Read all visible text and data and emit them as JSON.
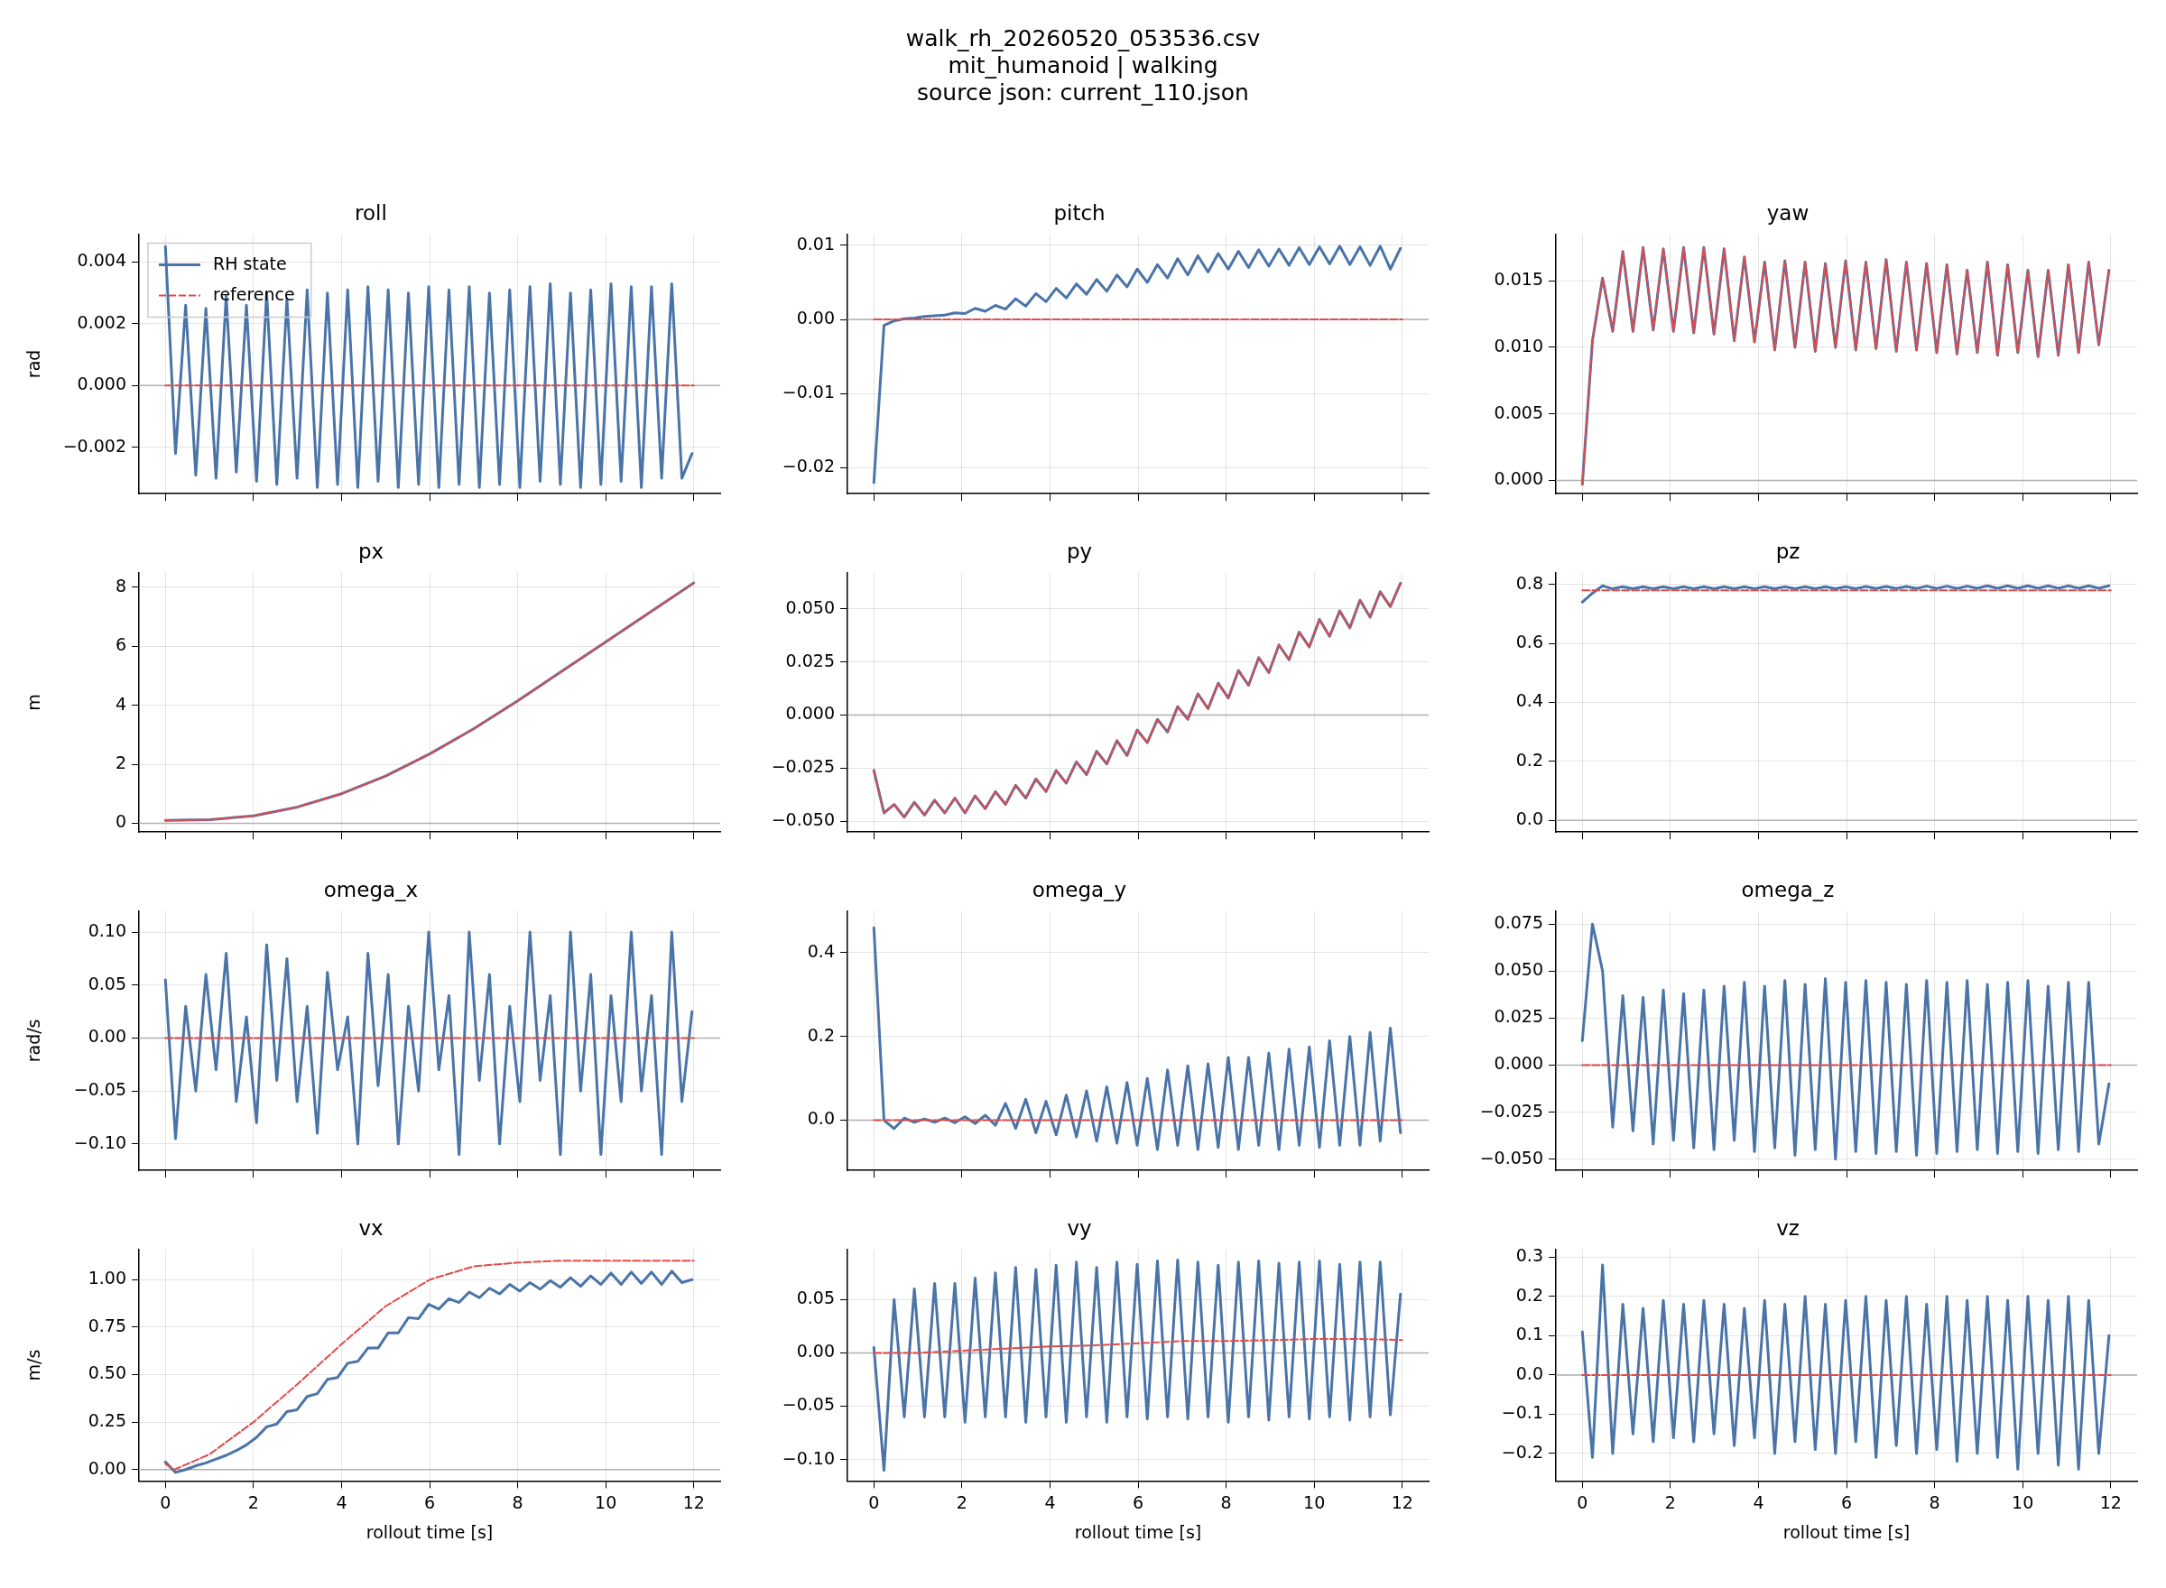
{
  "chart_data": [
    {
      "type": "line",
      "title": "roll",
      "ylabel": "rad",
      "annotations": [
        "walk_rh_20260520_053536.csv",
        "mit_humanoid | walking",
        "source json: current_110.json"
      ],
      "legend": "top left",
      "tick_labels": "y",
      "grid": true,
      "marker": "none",
      "x": [
        0,
        0.23,
        0.46,
        0.69,
        0.92,
        1.15,
        1.38,
        1.61,
        1.84,
        2.07,
        2.3,
        2.53,
        2.76,
        2.99,
        3.22,
        3.45,
        3.68,
        3.91,
        4.14,
        4.37,
        4.6,
        4.83,
        5.06,
        5.29,
        5.52,
        5.75,
        5.98,
        6.21,
        6.44,
        6.67,
        6.9,
        7.13,
        7.36,
        7.59,
        7.82,
        8.05,
        8.28,
        8.51,
        8.74,
        8.97,
        9.2,
        9.43,
        9.66,
        9.89,
        10.12,
        10.35,
        10.58,
        10.81,
        11.04,
        11.27,
        11.5,
        11.73,
        11.96
      ],
      "xlim": [
        -0.6,
        12.6
      ],
      "xticks": [
        0,
        2,
        4,
        6,
        8,
        10,
        12
      ],
      "ylim": [
        -0.0035,
        0.0049
      ],
      "yticks": [
        {
          "value": -0.002,
          "label": "−0.002"
        },
        {
          "value": 0,
          "label": "0.000"
        },
        {
          "value": 0.002,
          "label": "0.002"
        },
        {
          "value": 0.004,
          "label": "0.004"
        }
      ],
      "ref_lines": [
        {
          "axis": "y",
          "value": 0,
          "color": "#b0b0b0"
        }
      ],
      "series": [
        {
          "name": "RH state",
          "color": "#4a74a8",
          "line_style": "solid",
          "values": [
            0.0045,
            -0.0022,
            0.0026,
            -0.0029,
            0.0025,
            -0.003,
            0.0029,
            -0.0028,
            0.0026,
            -0.0031,
            0.003,
            -0.0032,
            0.0028,
            -0.003,
            0.0031,
            -0.0033,
            0.003,
            -0.0032,
            0.0031,
            -0.0033,
            0.0032,
            -0.0031,
            0.0031,
            -0.0033,
            0.003,
            -0.0032,
            0.0032,
            -0.0033,
            0.0031,
            -0.0032,
            0.0032,
            -0.0033,
            0.003,
            -0.0032,
            0.0031,
            -0.0033,
            0.0032,
            -0.0031,
            0.0033,
            -0.0032,
            0.003,
            -0.0033,
            0.0031,
            -0.0032,
            0.0033,
            -0.0031,
            0.0032,
            -0.0033,
            0.0032,
            -0.003,
            0.0033,
            -0.003,
            -0.0022
          ]
        },
        {
          "name": "reference",
          "color": "#e34a4a",
          "line_style": "dashed",
          "x": [
            0,
            12
          ],
          "values": [
            0,
            0
          ]
        }
      ]
    },
    {
      "type": "line",
      "title": "pitch",
      "tick_labels": "y",
      "grid": true,
      "marker": "none",
      "x": [
        0,
        0.23,
        0.46,
        0.69,
        0.92,
        1.15,
        1.38,
        1.61,
        1.84,
        2.07,
        2.3,
        2.53,
        2.76,
        2.99,
        3.22,
        3.45,
        3.68,
        3.91,
        4.14,
        4.37,
        4.6,
        4.83,
        5.06,
        5.29,
        5.52,
        5.75,
        5.98,
        6.21,
        6.44,
        6.67,
        6.9,
        7.13,
        7.36,
        7.59,
        7.82,
        8.05,
        8.28,
        8.51,
        8.74,
        8.97,
        9.2,
        9.43,
        9.66,
        9.89,
        10.12,
        10.35,
        10.58,
        10.81,
        11.04,
        11.27,
        11.5,
        11.73,
        11.96
      ],
      "xlim": [
        -0.6,
        12.6
      ],
      "xticks": [
        0,
        2,
        4,
        6,
        8,
        10,
        12
      ],
      "ylim": [
        -0.0235,
        0.0115
      ],
      "yticks": [
        {
          "value": -0.02,
          "label": "−0.02"
        },
        {
          "value": -0.01,
          "label": "−0.01"
        },
        {
          "value": 0,
          "label": "0.00"
        },
        {
          "value": 0.01,
          "label": "0.01"
        }
      ],
      "ref_lines": [
        {
          "axis": "y",
          "value": 0,
          "color": "#b0b0b0"
        }
      ],
      "series": [
        {
          "color": "#4a74a8",
          "line_style": "solid",
          "values": [
            -0.022,
            -0.0008,
            -0.0002,
            0.0001,
            0.0002,
            0.0004,
            0.0005,
            0.0006,
            0.0009,
            0.0008,
            0.0015,
            0.0011,
            0.0019,
            0.0014,
            0.0028,
            0.0018,
            0.0035,
            0.0024,
            0.0042,
            0.0029,
            0.0048,
            0.0034,
            0.0054,
            0.0038,
            0.006,
            0.0044,
            0.0068,
            0.005,
            0.0074,
            0.0056,
            0.0082,
            0.006,
            0.0086,
            0.0064,
            0.0089,
            0.0068,
            0.0092,
            0.007,
            0.0094,
            0.0072,
            0.0095,
            0.0073,
            0.0097,
            0.0074,
            0.0098,
            0.0075,
            0.0099,
            0.0074,
            0.0098,
            0.0073,
            0.0099,
            0.0068,
            0.0096
          ]
        },
        {
          "color": "#e34a4a",
          "line_style": "dashed",
          "x": [
            0,
            12
          ],
          "values": [
            0,
            0
          ]
        }
      ]
    },
    {
      "type": "line",
      "title": "yaw",
      "tick_labels": "y",
      "grid": true,
      "marker": "none",
      "x": [
        0,
        0.23,
        0.46,
        0.69,
        0.92,
        1.15,
        1.38,
        1.61,
        1.84,
        2.07,
        2.3,
        2.53,
        2.76,
        2.99,
        3.22,
        3.45,
        3.68,
        3.91,
        4.14,
        4.37,
        4.6,
        4.83,
        5.06,
        5.29,
        5.52,
        5.75,
        5.98,
        6.21,
        6.44,
        6.67,
        6.9,
        7.13,
        7.36,
        7.59,
        7.82,
        8.05,
        8.28,
        8.51,
        8.74,
        8.97,
        9.2,
        9.43,
        9.66,
        9.89,
        10.12,
        10.35,
        10.58,
        10.81,
        11.04,
        11.27,
        11.5,
        11.73,
        11.96
      ],
      "xlim": [
        -0.6,
        12.6
      ],
      "xticks": [
        0,
        2,
        4,
        6,
        8,
        10,
        12
      ],
      "ylim": [
        -0.001,
        0.0185
      ],
      "yticks": [
        {
          "value": 0,
          "label": "0.000"
        },
        {
          "value": 0.005,
          "label": "0.005"
        },
        {
          "value": 0.01,
          "label": "0.010"
        },
        {
          "value": 0.015,
          "label": "0.015"
        }
      ],
      "ref_lines": [
        {
          "axis": "y",
          "value": 0,
          "color": "#b0b0b0"
        }
      ],
      "series": [
        {
          "color": "#4a74a8",
          "line_style": "solid",
          "values": [
            -0.0003,
            0.0105,
            0.0152,
            0.0112,
            0.0172,
            0.0112,
            0.0175,
            0.0113,
            0.0174,
            0.0112,
            0.0175,
            0.0111,
            0.0175,
            0.011,
            0.0174,
            0.0105,
            0.0168,
            0.0104,
            0.0164,
            0.0098,
            0.0165,
            0.01,
            0.0164,
            0.0097,
            0.0163,
            0.01,
            0.0165,
            0.0098,
            0.0164,
            0.0099,
            0.0166,
            0.0097,
            0.0164,
            0.0098,
            0.0163,
            0.0096,
            0.0162,
            0.0095,
            0.0158,
            0.0096,
            0.0164,
            0.0094,
            0.0162,
            0.0096,
            0.0158,
            0.0093,
            0.0158,
            0.0094,
            0.0162,
            0.0096,
            0.0164,
            0.0102,
            0.0158
          ]
        },
        {
          "color": "#e34a4a",
          "line_style": "dashed",
          "values": [
            -0.0003,
            0.0105,
            0.0152,
            0.0112,
            0.0172,
            0.0112,
            0.0175,
            0.0113,
            0.0174,
            0.0112,
            0.0175,
            0.0111,
            0.0175,
            0.011,
            0.0174,
            0.0105,
            0.0168,
            0.0104,
            0.0164,
            0.0098,
            0.0165,
            0.01,
            0.0164,
            0.0097,
            0.0163,
            0.01,
            0.0165,
            0.0098,
            0.0164,
            0.0099,
            0.0166,
            0.0097,
            0.0164,
            0.0098,
            0.0163,
            0.0096,
            0.0162,
            0.0095,
            0.0158,
            0.0096,
            0.0164,
            0.0094,
            0.0162,
            0.0096,
            0.0158,
            0.0093,
            0.0158,
            0.0094,
            0.0162,
            0.0096,
            0.0164,
            0.0102,
            0.0158
          ]
        }
      ]
    },
    {
      "type": "line",
      "title": "px",
      "ylabel": "m",
      "tick_labels": "y",
      "grid": true,
      "marker": "none",
      "x": [
        0,
        1,
        2,
        3,
        4,
        5,
        6,
        7,
        8,
        9,
        10,
        11,
        12
      ],
      "xlim": [
        -0.6,
        12.6
      ],
      "xticks": [
        0,
        2,
        4,
        6,
        8,
        10,
        12
      ],
      "ylim": [
        -0.3,
        8.5
      ],
      "yticks": [
        0,
        2,
        4,
        6,
        8
      ],
      "ref_lines": [
        {
          "axis": "y",
          "value": 0,
          "color": "#b0b0b0"
        }
      ],
      "series": [
        {
          "color": "#4a74a8",
          "line_style": "solid",
          "values": [
            0.1,
            0.12,
            0.25,
            0.55,
            1.0,
            1.6,
            2.35,
            3.2,
            4.15,
            5.15,
            6.15,
            7.15,
            8.15
          ]
        },
        {
          "color": "#e34a4a",
          "line_style": "dashed",
          "values": [
            0.1,
            0.12,
            0.25,
            0.55,
            1.0,
            1.6,
            2.35,
            3.2,
            4.15,
            5.15,
            6.15,
            7.15,
            8.15
          ]
        }
      ]
    },
    {
      "type": "line",
      "title": "py",
      "tick_labels": "y",
      "grid": true,
      "marker": "none",
      "x": [
        0,
        0.23,
        0.46,
        0.69,
        0.92,
        1.15,
        1.38,
        1.61,
        1.84,
        2.07,
        2.3,
        2.53,
        2.76,
        2.99,
        3.22,
        3.45,
        3.68,
        3.91,
        4.14,
        4.37,
        4.6,
        4.83,
        5.06,
        5.29,
        5.52,
        5.75,
        5.98,
        6.21,
        6.44,
        6.67,
        6.9,
        7.13,
        7.36,
        7.59,
        7.82,
        8.05,
        8.28,
        8.51,
        8.74,
        8.97,
        9.2,
        9.43,
        9.66,
        9.89,
        10.12,
        10.35,
        10.58,
        10.81,
        11.04,
        11.27,
        11.5,
        11.73,
        11.96
      ],
      "xlim": [
        -0.6,
        12.6
      ],
      "xticks": [
        0,
        2,
        4,
        6,
        8,
        10,
        12
      ],
      "ylim": [
        -0.055,
        0.067
      ],
      "yticks": [
        {
          "value": -0.05,
          "label": "−0.050"
        },
        {
          "value": -0.025,
          "label": "−0.025"
        },
        {
          "value": 0,
          "label": "0.000"
        },
        {
          "value": 0.025,
          "label": "0.025"
        },
        {
          "value": 0.05,
          "label": "0.050"
        }
      ],
      "ref_lines": [
        {
          "axis": "y",
          "value": 0,
          "color": "#b0b0b0"
        }
      ],
      "series": [
        {
          "color": "#4a74a8",
          "line_style": "solid",
          "values": [
            -0.026,
            -0.046,
            -0.042,
            -0.048,
            -0.041,
            -0.047,
            -0.04,
            -0.046,
            -0.039,
            -0.046,
            -0.038,
            -0.044,
            -0.036,
            -0.042,
            -0.033,
            -0.039,
            -0.03,
            -0.036,
            -0.026,
            -0.032,
            -0.022,
            -0.028,
            -0.017,
            -0.023,
            -0.012,
            -0.019,
            -0.007,
            -0.013,
            -0.002,
            -0.008,
            0.004,
            -0.002,
            0.01,
            0.003,
            0.015,
            0.008,
            0.021,
            0.014,
            0.027,
            0.02,
            0.033,
            0.026,
            0.039,
            0.032,
            0.045,
            0.037,
            0.049,
            0.041,
            0.054,
            0.046,
            0.058,
            0.051,
            0.062
          ]
        },
        {
          "color": "#e34a4a",
          "line_style": "dashed",
          "values": [
            -0.026,
            -0.046,
            -0.042,
            -0.048,
            -0.041,
            -0.047,
            -0.04,
            -0.046,
            -0.039,
            -0.046,
            -0.038,
            -0.044,
            -0.036,
            -0.042,
            -0.033,
            -0.039,
            -0.03,
            -0.036,
            -0.026,
            -0.032,
            -0.022,
            -0.028,
            -0.017,
            -0.023,
            -0.012,
            -0.019,
            -0.007,
            -0.013,
            -0.002,
            -0.008,
            0.004,
            -0.002,
            0.01,
            0.003,
            0.015,
            0.008,
            0.021,
            0.014,
            0.027,
            0.02,
            0.033,
            0.026,
            0.039,
            0.032,
            0.045,
            0.037,
            0.049,
            0.041,
            0.054,
            0.046,
            0.058,
            0.051,
            0.062
          ]
        }
      ]
    },
    {
      "type": "line",
      "title": "pz",
      "tick_labels": "y",
      "grid": true,
      "marker": "none",
      "x": [
        0,
        0.23,
        0.46,
        0.69,
        0.92,
        1.15,
        1.38,
        1.61,
        1.84,
        2.07,
        2.3,
        2.53,
        2.76,
        2.99,
        3.22,
        3.45,
        3.68,
        3.91,
        4.14,
        4.37,
        4.6,
        4.83,
        5.06,
        5.29,
        5.52,
        5.75,
        5.98,
        6.21,
        6.44,
        6.67,
        6.9,
        7.13,
        7.36,
        7.59,
        7.82,
        8.05,
        8.28,
        8.51,
        8.74,
        8.97,
        9.2,
        9.43,
        9.66,
        9.89,
        10.12,
        10.35,
        10.58,
        10.81,
        11.04,
        11.27,
        11.5,
        11.73,
        11.96
      ],
      "xlim": [
        -0.6,
        12.6
      ],
      "xticks": [
        0,
        2,
        4,
        6,
        8,
        10,
        12
      ],
      "ylim": [
        -0.04,
        0.84
      ],
      "yticks": [
        {
          "value": 0,
          "label": "0.0"
        },
        {
          "value": 0.2,
          "label": "0.2"
        },
        {
          "value": 0.4,
          "label": "0.4"
        },
        {
          "value": 0.6,
          "label": "0.6"
        },
        {
          "value": 0.8,
          "label": "0.8"
        }
      ],
      "ref_lines": [
        {
          "axis": "y",
          "value": 0,
          "color": "#b0b0b0"
        }
      ],
      "series": [
        {
          "color": "#4a74a8",
          "line_style": "solid",
          "values": [
            0.74,
            0.77,
            0.795,
            0.785,
            0.792,
            0.785,
            0.792,
            0.785,
            0.792,
            0.785,
            0.792,
            0.785,
            0.792,
            0.785,
            0.792,
            0.785,
            0.792,
            0.785,
            0.792,
            0.785,
            0.792,
            0.785,
            0.792,
            0.785,
            0.792,
            0.785,
            0.792,
            0.785,
            0.793,
            0.786,
            0.793,
            0.786,
            0.793,
            0.786,
            0.794,
            0.786,
            0.794,
            0.786,
            0.794,
            0.787,
            0.795,
            0.787,
            0.795,
            0.787,
            0.795,
            0.787,
            0.795,
            0.787,
            0.795,
            0.787,
            0.795,
            0.787,
            0.795
          ]
        },
        {
          "color": "#e34a4a",
          "line_style": "dashed",
          "x": [
            0,
            12
          ],
          "values": [
            0.78,
            0.78
          ]
        }
      ]
    },
    {
      "type": "line",
      "title": "omega_x",
      "ylabel": "rad/s",
      "tick_labels": "y",
      "grid": true,
      "marker": "none",
      "x": [
        0,
        0.23,
        0.46,
        0.69,
        0.92,
        1.15,
        1.38,
        1.61,
        1.84,
        2.07,
        2.3,
        2.53,
        2.76,
        2.99,
        3.22,
        3.45,
        3.68,
        3.91,
        4.14,
        4.37,
        4.6,
        4.83,
        5.06,
        5.29,
        5.52,
        5.75,
        5.98,
        6.21,
        6.44,
        6.67,
        6.9,
        7.13,
        7.36,
        7.59,
        7.82,
        8.05,
        8.28,
        8.51,
        8.74,
        8.97,
        9.2,
        9.43,
        9.66,
        9.89,
        10.12,
        10.35,
        10.58,
        10.81,
        11.04,
        11.27,
        11.5,
        11.73,
        11.96
      ],
      "xlim": [
        -0.6,
        12.6
      ],
      "xticks": [
        0,
        2,
        4,
        6,
        8,
        10,
        12
      ],
      "ylim": [
        -0.125,
        0.12
      ],
      "yticks": [
        {
          "value": -0.1,
          "label": "−0.10"
        },
        {
          "value": -0.05,
          "label": "−0.05"
        },
        {
          "value": 0,
          "label": "0.00"
        },
        {
          "value": 0.05,
          "label": "0.05"
        },
        {
          "value": 0.1,
          "label": "0.10"
        }
      ],
      "ref_lines": [
        {
          "axis": "y",
          "value": 0,
          "color": "#b0b0b0"
        }
      ],
      "series": [
        {
          "color": "#4a74a8",
          "line_style": "solid",
          "values": [
            0.055,
            -0.095,
            0.03,
            -0.05,
            0.06,
            -0.03,
            0.08,
            -0.06,
            0.02,
            -0.08,
            0.088,
            -0.04,
            0.075,
            -0.06,
            0.03,
            -0.09,
            0.062,
            -0.03,
            0.02,
            -0.1,
            0.08,
            -0.045,
            0.06,
            -0.1,
            0.03,
            -0.05,
            0.1,
            -0.03,
            0.04,
            -0.11,
            0.1,
            -0.04,
            0.06,
            -0.1,
            0.03,
            -0.06,
            0.1,
            -0.04,
            0.04,
            -0.11,
            0.1,
            -0.05,
            0.06,
            -0.11,
            0.04,
            -0.06,
            0.1,
            -0.05,
            0.04,
            -0.11,
            0.1,
            -0.06,
            0.025
          ]
        },
        {
          "color": "#e34a4a",
          "line_style": "dashed",
          "x": [
            0,
            12
          ],
          "values": [
            0,
            0
          ]
        }
      ]
    },
    {
      "type": "line",
      "title": "omega_y",
      "tick_labels": "y",
      "grid": true,
      "marker": "none",
      "x": [
        0,
        0.23,
        0.46,
        0.69,
        0.92,
        1.15,
        1.38,
        1.61,
        1.84,
        2.07,
        2.3,
        2.53,
        2.76,
        2.99,
        3.22,
        3.45,
        3.68,
        3.91,
        4.14,
        4.37,
        4.6,
        4.83,
        5.06,
        5.29,
        5.52,
        5.75,
        5.98,
        6.21,
        6.44,
        6.67,
        6.9,
        7.13,
        7.36,
        7.59,
        7.82,
        8.05,
        8.28,
        8.51,
        8.74,
        8.97,
        9.2,
        9.43,
        9.66,
        9.89,
        10.12,
        10.35,
        10.58,
        10.81,
        11.04,
        11.27,
        11.5,
        11.73,
        11.96
      ],
      "xlim": [
        -0.6,
        12.6
      ],
      "xticks": [
        0,
        2,
        4,
        6,
        8,
        10,
        12
      ],
      "ylim": [
        -0.12,
        0.5
      ],
      "yticks": [
        {
          "value": 0,
          "label": "0.0"
        },
        {
          "value": 0.2,
          "label": "0.2"
        },
        {
          "value": 0.4,
          "label": "0.4"
        }
      ],
      "ref_lines": [
        {
          "axis": "y",
          "value": 0,
          "color": "#b0b0b0"
        }
      ],
      "series": [
        {
          "color": "#4a74a8",
          "line_style": "solid",
          "values": [
            0.46,
            0.0,
            -0.02,
            0.005,
            -0.005,
            0.003,
            -0.005,
            0.005,
            -0.006,
            0.008,
            -0.008,
            0.012,
            -0.012,
            0.04,
            -0.02,
            0.05,
            -0.03,
            0.045,
            -0.035,
            0.06,
            -0.04,
            0.07,
            -0.05,
            0.08,
            -0.055,
            0.09,
            -0.06,
            0.1,
            -0.07,
            0.12,
            -0.06,
            0.13,
            -0.07,
            0.135,
            -0.065,
            0.15,
            -0.07,
            0.15,
            -0.06,
            0.16,
            -0.07,
            0.17,
            -0.06,
            0.175,
            -0.065,
            0.19,
            -0.06,
            0.2,
            -0.06,
            0.21,
            -0.05,
            0.22,
            -0.03
          ]
        },
        {
          "color": "#e34a4a",
          "line_style": "dashed",
          "x": [
            0,
            12
          ],
          "values": [
            0,
            0
          ]
        }
      ]
    },
    {
      "type": "line",
      "title": "omega_z",
      "tick_labels": "y",
      "grid": true,
      "marker": "none",
      "x": [
        0,
        0.23,
        0.46,
        0.69,
        0.92,
        1.15,
        1.38,
        1.61,
        1.84,
        2.07,
        2.3,
        2.53,
        2.76,
        2.99,
        3.22,
        3.45,
        3.68,
        3.91,
        4.14,
        4.37,
        4.6,
        4.83,
        5.06,
        5.29,
        5.52,
        5.75,
        5.98,
        6.21,
        6.44,
        6.67,
        6.9,
        7.13,
        7.36,
        7.59,
        7.82,
        8.05,
        8.28,
        8.51,
        8.74,
        8.97,
        9.2,
        9.43,
        9.66,
        9.89,
        10.12,
        10.35,
        10.58,
        10.81,
        11.04,
        11.27,
        11.5,
        11.73,
        11.96
      ],
      "xlim": [
        -0.6,
        12.6
      ],
      "xticks": [
        0,
        2,
        4,
        6,
        8,
        10,
        12
      ],
      "ylim": [
        -0.056,
        0.082
      ],
      "yticks": [
        {
          "value": -0.05,
          "label": "−0.050"
        },
        {
          "value": -0.025,
          "label": "−0.025"
        },
        {
          "value": 0,
          "label": "0.000"
        },
        {
          "value": 0.025,
          "label": "0.025"
        },
        {
          "value": 0.05,
          "label": "0.050"
        },
        {
          "value": 0.075,
          "label": "0.075"
        }
      ],
      "ref_lines": [
        {
          "axis": "y",
          "value": 0,
          "color": "#b0b0b0"
        }
      ],
      "series": [
        {
          "color": "#4a74a8",
          "line_style": "solid",
          "values": [
            0.013,
            0.075,
            0.05,
            -0.033,
            0.037,
            -0.035,
            0.036,
            -0.042,
            0.04,
            -0.04,
            0.038,
            -0.044,
            0.04,
            -0.045,
            0.042,
            -0.04,
            0.044,
            -0.046,
            0.042,
            -0.044,
            0.045,
            -0.048,
            0.043,
            -0.045,
            0.046,
            -0.05,
            0.044,
            -0.046,
            0.045,
            -0.047,
            0.044,
            -0.046,
            0.043,
            -0.048,
            0.045,
            -0.047,
            0.044,
            -0.046,
            0.045,
            -0.045,
            0.043,
            -0.047,
            0.044,
            -0.046,
            0.045,
            -0.047,
            0.042,
            -0.045,
            0.044,
            -0.046,
            0.044,
            -0.042,
            -0.01
          ]
        },
        {
          "color": "#e34a4a",
          "line_style": "dashed",
          "x": [
            0,
            12
          ],
          "values": [
            0,
            0
          ]
        }
      ]
    },
    {
      "type": "line",
      "title": "vx",
      "xlabel": "rollout time [s]",
      "ylabel": "m/s",
      "grid": true,
      "marker": "none",
      "x": [
        0,
        0.23,
        0.46,
        0.69,
        0.92,
        1.15,
        1.38,
        1.61,
        1.84,
        2.07,
        2.3,
        2.53,
        2.76,
        2.99,
        3.22,
        3.45,
        3.68,
        3.91,
        4.14,
        4.37,
        4.6,
        4.83,
        5.06,
        5.29,
        5.52,
        5.75,
        5.98,
        6.21,
        6.44,
        6.67,
        6.9,
        7.13,
        7.36,
        7.59,
        7.82,
        8.05,
        8.28,
        8.51,
        8.74,
        8.97,
        9.2,
        9.43,
        9.66,
        9.89,
        10.12,
        10.35,
        10.58,
        10.81,
        11.04,
        11.27,
        11.5,
        11.73,
        11.96
      ],
      "xlim": [
        -0.6,
        12.6
      ],
      "xticks": [
        0,
        2,
        4,
        6,
        8,
        10,
        12
      ],
      "ylim": [
        -0.06,
        1.16
      ],
      "yticks": [
        {
          "value": 0,
          "label": "0.00"
        },
        {
          "value": 0.25,
          "label": "0.25"
        },
        {
          "value": 0.5,
          "label": "0.50"
        },
        {
          "value": 0.75,
          "label": "0.75"
        },
        {
          "value": 1,
          "label": "1.00"
        }
      ],
      "ref_lines": [
        {
          "axis": "y",
          "value": 0,
          "color": "#b0b0b0"
        }
      ],
      "series": [
        {
          "color": "#4a74a8",
          "line_style": "solid",
          "values": [
            0.04,
            -0.015,
            0.0,
            0.02,
            0.035,
            0.055,
            0.075,
            0.1,
            0.13,
            0.17,
            0.225,
            0.24,
            0.305,
            0.315,
            0.385,
            0.4,
            0.475,
            0.485,
            0.56,
            0.57,
            0.64,
            0.64,
            0.72,
            0.72,
            0.8,
            0.795,
            0.87,
            0.845,
            0.9,
            0.88,
            0.935,
            0.905,
            0.955,
            0.925,
            0.975,
            0.94,
            0.985,
            0.95,
            0.995,
            0.96,
            1.01,
            0.965,
            1.02,
            0.975,
            1.035,
            0.975,
            1.04,
            0.98,
            1.04,
            0.975,
            1.045,
            0.985,
            1.0
          ]
        },
        {
          "color": "#e34a4a",
          "line_style": "dashed",
          "x": [
            0,
            0.2,
            1,
            2,
            3,
            4,
            5,
            6,
            7,
            8,
            9,
            10,
            12
          ],
          "values": [
            0.03,
            0.0,
            0.08,
            0.25,
            0.45,
            0.66,
            0.86,
            1.0,
            1.07,
            1.09,
            1.1,
            1.1,
            1.1
          ]
        }
      ]
    },
    {
      "type": "line",
      "title": "vy",
      "xlabel": "rollout time [s]",
      "grid": true,
      "marker": "none",
      "x": [
        0,
        0.23,
        0.46,
        0.69,
        0.92,
        1.15,
        1.38,
        1.61,
        1.84,
        2.07,
        2.3,
        2.53,
        2.76,
        2.99,
        3.22,
        3.45,
        3.68,
        3.91,
        4.14,
        4.37,
        4.6,
        4.83,
        5.06,
        5.29,
        5.52,
        5.75,
        5.98,
        6.21,
        6.44,
        6.67,
        6.9,
        7.13,
        7.36,
        7.59,
        7.82,
        8.05,
        8.28,
        8.51,
        8.74,
        8.97,
        9.2,
        9.43,
        9.66,
        9.89,
        10.12,
        10.35,
        10.58,
        10.81,
        11.04,
        11.27,
        11.5,
        11.73,
        11.96
      ],
      "xlim": [
        -0.6,
        12.6
      ],
      "xticks": [
        0,
        2,
        4,
        6,
        8,
        10,
        12
      ],
      "ylim": [
        -0.12,
        0.097
      ],
      "yticks": [
        {
          "value": -0.1,
          "label": "−0.10"
        },
        {
          "value": -0.05,
          "label": "−0.05"
        },
        {
          "value": 0,
          "label": "0.00"
        },
        {
          "value": 0.05,
          "label": "0.05"
        }
      ],
      "ref_lines": [
        {
          "axis": "y",
          "value": 0,
          "color": "#b0b0b0"
        }
      ],
      "series": [
        {
          "color": "#4a74a8",
          "line_style": "solid",
          "values": [
            0.005,
            -0.11,
            0.05,
            -0.06,
            0.06,
            -0.06,
            0.065,
            -0.06,
            0.065,
            -0.065,
            0.07,
            -0.06,
            0.075,
            -0.06,
            0.08,
            -0.065,
            0.078,
            -0.06,
            0.082,
            -0.065,
            0.085,
            -0.06,
            0.08,
            -0.065,
            0.085,
            -0.06,
            0.083,
            -0.062,
            0.086,
            -0.06,
            0.087,
            -0.062,
            0.085,
            -0.06,
            0.082,
            -0.065,
            0.085,
            -0.06,
            0.086,
            -0.063,
            0.084,
            -0.06,
            0.085,
            -0.062,
            0.086,
            -0.06,
            0.083,
            -0.063,
            0.085,
            -0.06,
            0.085,
            -0.058,
            0.055
          ]
        },
        {
          "color": "#e34a4a",
          "line_style": "dashed",
          "x": [
            0,
            1,
            2,
            3,
            4,
            5,
            6,
            7,
            8,
            9,
            10,
            11,
            12
          ],
          "values": [
            0,
            0,
            0.002,
            0.004,
            0.006,
            0.007,
            0.009,
            0.011,
            0.011,
            0.012,
            0.013,
            0.013,
            0.012
          ]
        }
      ]
    },
    {
      "type": "line",
      "title": "vz",
      "xlabel": "rollout time [s]",
      "grid": true,
      "marker": "none",
      "x": [
        0,
        0.23,
        0.46,
        0.69,
        0.92,
        1.15,
        1.38,
        1.61,
        1.84,
        2.07,
        2.3,
        2.53,
        2.76,
        2.99,
        3.22,
        3.45,
        3.68,
        3.91,
        4.14,
        4.37,
        4.6,
        4.83,
        5.06,
        5.29,
        5.52,
        5.75,
        5.98,
        6.21,
        6.44,
        6.67,
        6.9,
        7.13,
        7.36,
        7.59,
        7.82,
        8.05,
        8.28,
        8.51,
        8.74,
        8.97,
        9.2,
        9.43,
        9.66,
        9.89,
        10.12,
        10.35,
        10.58,
        10.81,
        11.04,
        11.27,
        11.5,
        11.73,
        11.96
      ],
      "xlim": [
        -0.6,
        12.6
      ],
      "xticks": [
        0,
        2,
        4,
        6,
        8,
        10,
        12
      ],
      "ylim": [
        -0.27,
        0.32
      ],
      "yticks": [
        {
          "value": -0.2,
          "label": "−0.2"
        },
        {
          "value": -0.1,
          "label": "−0.1"
        },
        {
          "value": 0,
          "label": "0.0"
        },
        {
          "value": 0.1,
          "label": "0.1"
        },
        {
          "value": 0.2,
          "label": "0.2"
        },
        {
          "value": 0.3,
          "label": "0.3"
        }
      ],
      "ref_lines": [
        {
          "axis": "y",
          "value": 0,
          "color": "#b0b0b0"
        }
      ],
      "series": [
        {
          "color": "#4a74a8",
          "line_style": "solid",
          "values": [
            0.11,
            -0.21,
            0.28,
            -0.2,
            0.18,
            -0.15,
            0.17,
            -0.17,
            0.19,
            -0.16,
            0.18,
            -0.17,
            0.19,
            -0.15,
            0.18,
            -0.18,
            0.17,
            -0.16,
            0.19,
            -0.2,
            0.18,
            -0.17,
            0.2,
            -0.19,
            0.18,
            -0.2,
            0.19,
            -0.17,
            0.2,
            -0.21,
            0.19,
            -0.18,
            0.2,
            -0.2,
            0.18,
            -0.19,
            0.2,
            -0.22,
            0.19,
            -0.2,
            0.2,
            -0.21,
            0.19,
            -0.24,
            0.2,
            -0.2,
            0.19,
            -0.23,
            0.2,
            -0.24,
            0.19,
            -0.2,
            0.1
          ]
        },
        {
          "color": "#e34a4a",
          "line_style": "dashed",
          "x": [
            0,
            12
          ],
          "values": [
            0,
            0
          ]
        }
      ]
    }
  ]
}
